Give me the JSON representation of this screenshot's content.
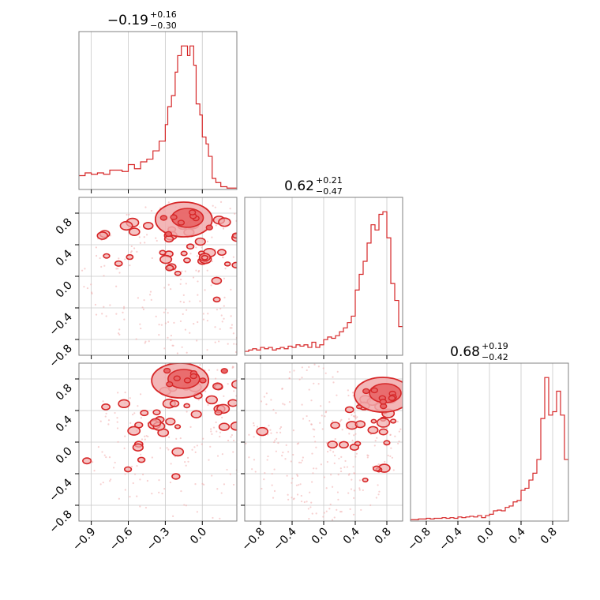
{
  "chart_data": [
    {
      "type": "histogram",
      "panel": "diag-0",
      "title": {
        "median": "−0.19",
        "plus": "+0.16",
        "minus": "−0.30"
      },
      "xlim": [
        -1.0,
        0.28
      ],
      "x": [
        -1.0,
        -0.95,
        -0.9,
        -0.85,
        -0.8,
        -0.75,
        -0.7,
        -0.65,
        -0.6,
        -0.55,
        -0.5,
        -0.45,
        -0.4,
        -0.35,
        -0.3,
        -0.28,
        -0.25,
        -0.22,
        -0.2,
        -0.17,
        -0.15,
        -0.12,
        -0.1,
        -0.07,
        -0.05,
        -0.02,
        0.0,
        0.03,
        0.05,
        0.08,
        0.11,
        0.15,
        0.2
      ],
      "values": [
        10,
        12,
        11,
        12,
        11,
        14,
        14,
        13,
        18,
        15,
        20,
        22,
        28,
        35,
        47,
        60,
        68,
        85,
        97,
        104,
        104,
        97,
        104,
        90,
        62,
        54,
        38,
        33,
        24,
        8,
        5,
        2,
        1
      ],
      "color": "#d62728"
    },
    {
      "type": "histogram",
      "panel": "diag-1",
      "title": {
        "median": "0.62",
        "plus": "+0.21",
        "minus": "−0.47"
      },
      "xlim": [
        -1.0,
        1.0
      ],
      "x": [
        -1.0,
        -0.95,
        -0.9,
        -0.85,
        -0.8,
        -0.75,
        -0.7,
        -0.65,
        -0.6,
        -0.55,
        -0.5,
        -0.45,
        -0.4,
        -0.35,
        -0.3,
        -0.25,
        -0.2,
        -0.15,
        -0.1,
        -0.05,
        0.0,
        0.05,
        0.1,
        0.15,
        0.2,
        0.25,
        0.3,
        0.35,
        0.4,
        0.45,
        0.5,
        0.55,
        0.6,
        0.65,
        0.7,
        0.75,
        0.8,
        0.85,
        0.9,
        0.95
      ],
      "values": [
        3,
        4,
        5,
        4,
        6,
        5,
        6,
        4,
        5,
        6,
        5,
        7,
        6,
        8,
        7,
        8,
        6,
        10,
        6,
        8,
        12,
        14,
        13,
        15,
        18,
        21,
        25,
        30,
        50,
        62,
        72,
        86,
        100,
        96,
        108,
        110,
        90,
        55,
        42,
        22
      ],
      "color": "#d62728"
    },
    {
      "type": "histogram",
      "panel": "diag-2",
      "title": {
        "median": "0.68",
        "plus": "+0.19",
        "minus": "−0.42"
      },
      "xlim": [
        -1.0,
        1.0
      ],
      "x": [
        -1.0,
        -0.95,
        -0.9,
        -0.85,
        -0.8,
        -0.75,
        -0.7,
        -0.65,
        -0.6,
        -0.55,
        -0.5,
        -0.45,
        -0.4,
        -0.35,
        -0.3,
        -0.25,
        -0.2,
        -0.15,
        -0.1,
        -0.05,
        0.0,
        0.05,
        0.1,
        0.15,
        0.2,
        0.25,
        0.3,
        0.35,
        0.4,
        0.45,
        0.5,
        0.55,
        0.6,
        0.65,
        0.7,
        0.75,
        0.8,
        0.85,
        0.9,
        0.95
      ],
      "values": [
        2,
        2,
        3,
        3,
        4,
        3,
        4,
        4,
        5,
        4,
        5,
        4,
        6,
        5,
        6,
        7,
        6,
        8,
        5,
        8,
        10,
        15,
        16,
        15,
        20,
        22,
        28,
        30,
        45,
        48,
        60,
        70,
        90,
        150,
        210,
        155,
        160,
        190,
        155,
        90
      ],
      "color": "#d62728"
    },
    {
      "type": "contour",
      "panel": "2d-1-0",
      "xlim": [
        -1.0,
        0.28
      ],
      "ylim": [
        -1.0,
        1.0
      ],
      "levels": [
        0.39,
        0.86
      ],
      "mode": {
        "x": -0.15,
        "y": 0.72
      },
      "color": "#d62728"
    },
    {
      "type": "contour",
      "panel": "2d-2-0",
      "xlim": [
        -1.0,
        0.28
      ],
      "ylim": [
        -1.0,
        1.0
      ],
      "levels": [
        0.39,
        0.86
      ],
      "mode": {
        "x": -0.18,
        "y": 0.78
      },
      "color": "#d62728"
    },
    {
      "type": "contour",
      "panel": "2d-2-1",
      "xlim": [
        -1.0,
        1.0
      ],
      "ylim": [
        -1.0,
        1.0
      ],
      "levels": [
        0.39,
        0.86
      ],
      "mode": {
        "x": 0.75,
        "y": 0.6
      },
      "color": "#d62728"
    }
  ],
  "axes": {
    "x0_ticks": [
      "−0.9",
      "−0.6",
      "−0.3",
      "0.0"
    ],
    "x0_tick_values": [
      -0.9,
      -0.6,
      -0.3,
      0.0
    ],
    "x12_ticks": [
      "−0.8",
      "−0.4",
      "0.0",
      "0.4",
      "0.8"
    ],
    "x12_tick_values": [
      -0.8,
      -0.4,
      0.0,
      0.4,
      0.8
    ],
    "y_ticks": [
      "0.8",
      "0.4",
      "0.0",
      "−0.4",
      "−0.8"
    ],
    "y_tick_values": [
      0.8,
      0.4,
      0.0,
      -0.4,
      -0.8
    ]
  },
  "colors": {
    "accent": "#d62728",
    "fill_outer": "#f1a9aa",
    "fill_inner": "#e86566",
    "grid": "#c8c8c8",
    "frame": "#808080"
  }
}
